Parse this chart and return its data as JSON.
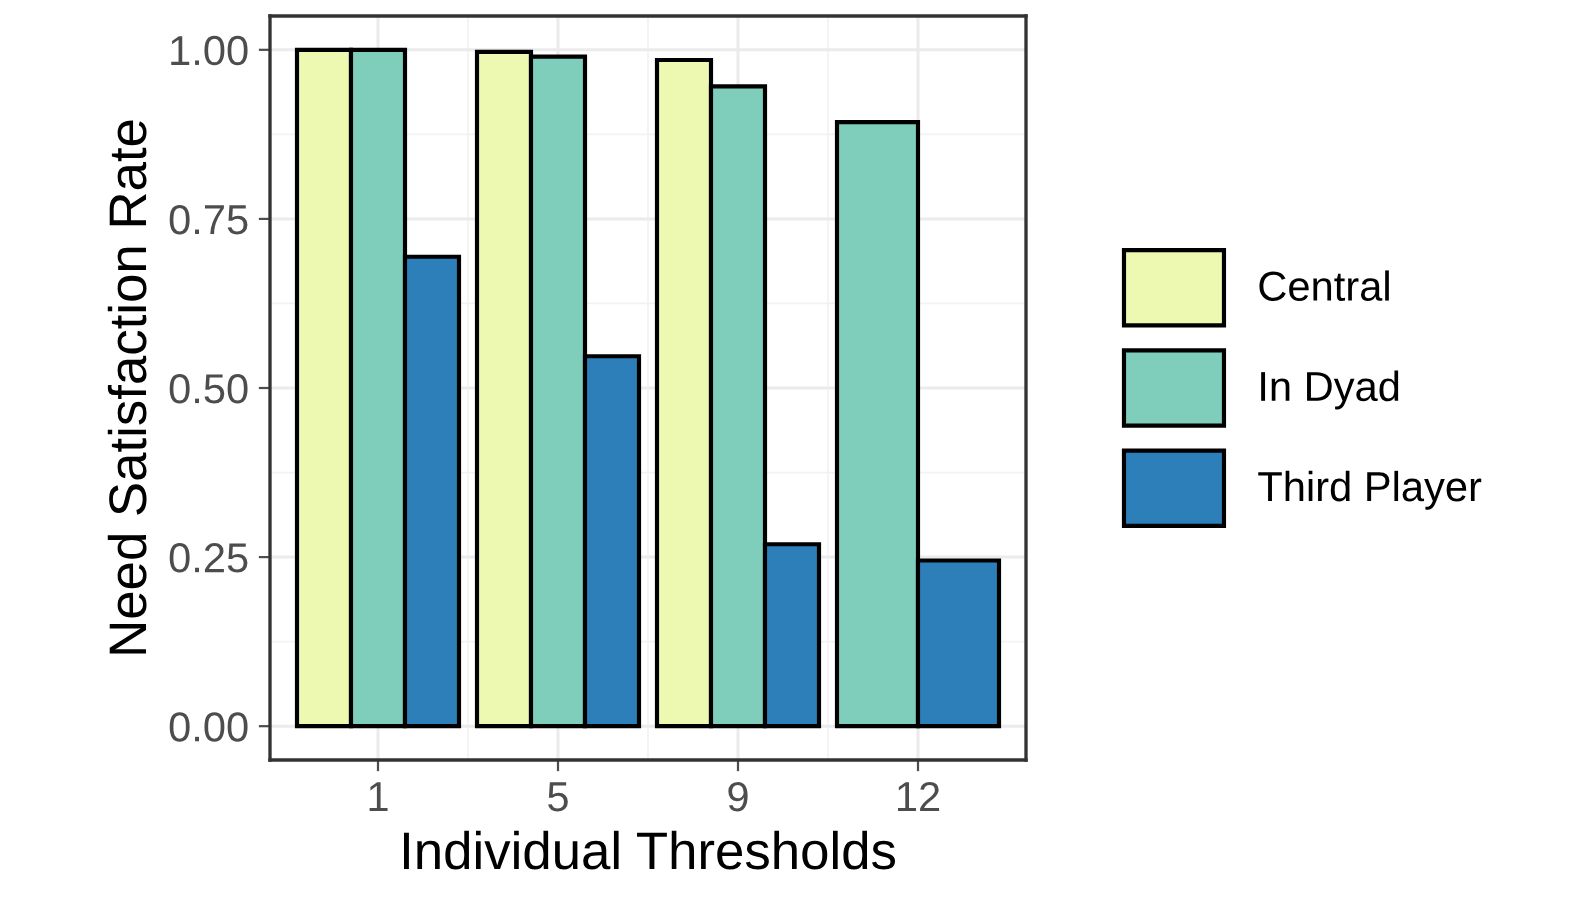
{
  "chart_data": {
    "type": "bar",
    "xlabel": "Individual Thresholds",
    "ylabel": "Need Satisfaction Rate",
    "categories": [
      "1",
      "5",
      "9",
      "12"
    ],
    "series": [
      {
        "name": "Central",
        "color": "#edf8b1",
        "values": [
          1.0,
          0.997,
          0.985,
          null
        ]
      },
      {
        "name": "In Dyad",
        "color": "#7fcdbb",
        "values": [
          1.0,
          0.99,
          0.946,
          0.893
        ]
      },
      {
        "name": "Third Player",
        "color": "#2c7fb8",
        "values": [
          0.694,
          0.547,
          0.269,
          0.245
        ]
      }
    ],
    "ylim": [
      -0.05,
      1.05
    ],
    "yticks": [
      {
        "value": 0,
        "label": "0.00"
      },
      {
        "value": 0.25,
        "label": "0.25"
      },
      {
        "value": 0.5,
        "label": "0.50"
      },
      {
        "value": 0.75,
        "label": "0.75"
      },
      {
        "value": 1,
        "label": "1.00"
      }
    ],
    "grid": true,
    "legend": "right"
  }
}
